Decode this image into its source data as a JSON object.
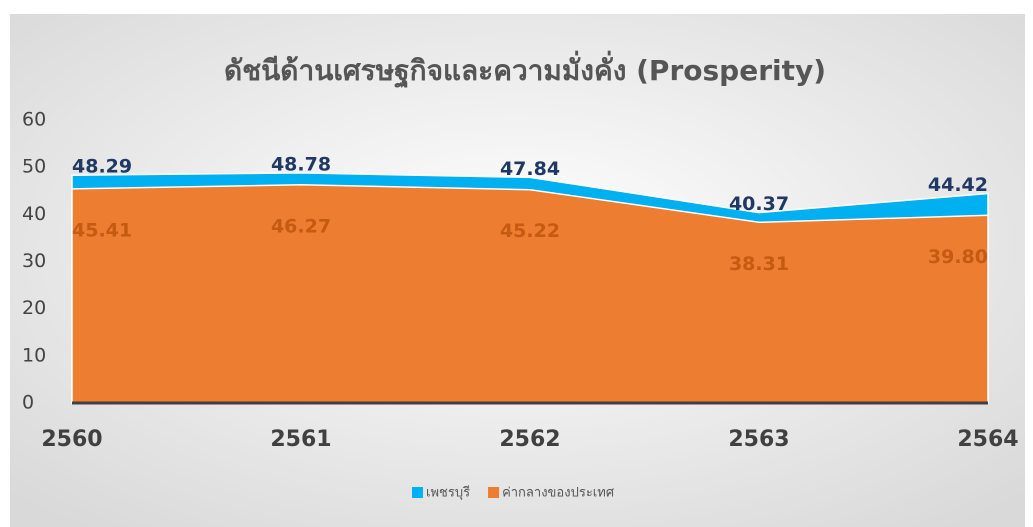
{
  "chart_data": {
    "type": "area",
    "title": "ดัชนีด้านเศรษฐกิจและความมั่งคั่ง (Prosperity)",
    "categories": [
      "2560",
      "2561",
      "2562",
      "2563",
      "2564"
    ],
    "series": [
      {
        "name": "เพชรบุรี",
        "color": "#00b0f0",
        "label_color": "#1f3864",
        "values": [
          48.29,
          48.78,
          47.84,
          40.37,
          44.42
        ],
        "value_labels": [
          "48.29",
          "48.78",
          "47.84",
          "40.37",
          "44.42"
        ]
      },
      {
        "name": "ค่ากลางของประเทศ",
        "color": "#ed7d31",
        "label_color": "#c55a11",
        "values": [
          45.41,
          46.27,
          45.22,
          38.31,
          39.8
        ],
        "value_labels": [
          "45.41",
          "46.27",
          "45.22",
          "38.31",
          "39.80"
        ]
      }
    ],
    "ylim": [
      0,
      60
    ],
    "yticks": [
      0,
      10,
      20,
      30,
      40,
      50,
      60
    ],
    "legend": "bottom"
  }
}
